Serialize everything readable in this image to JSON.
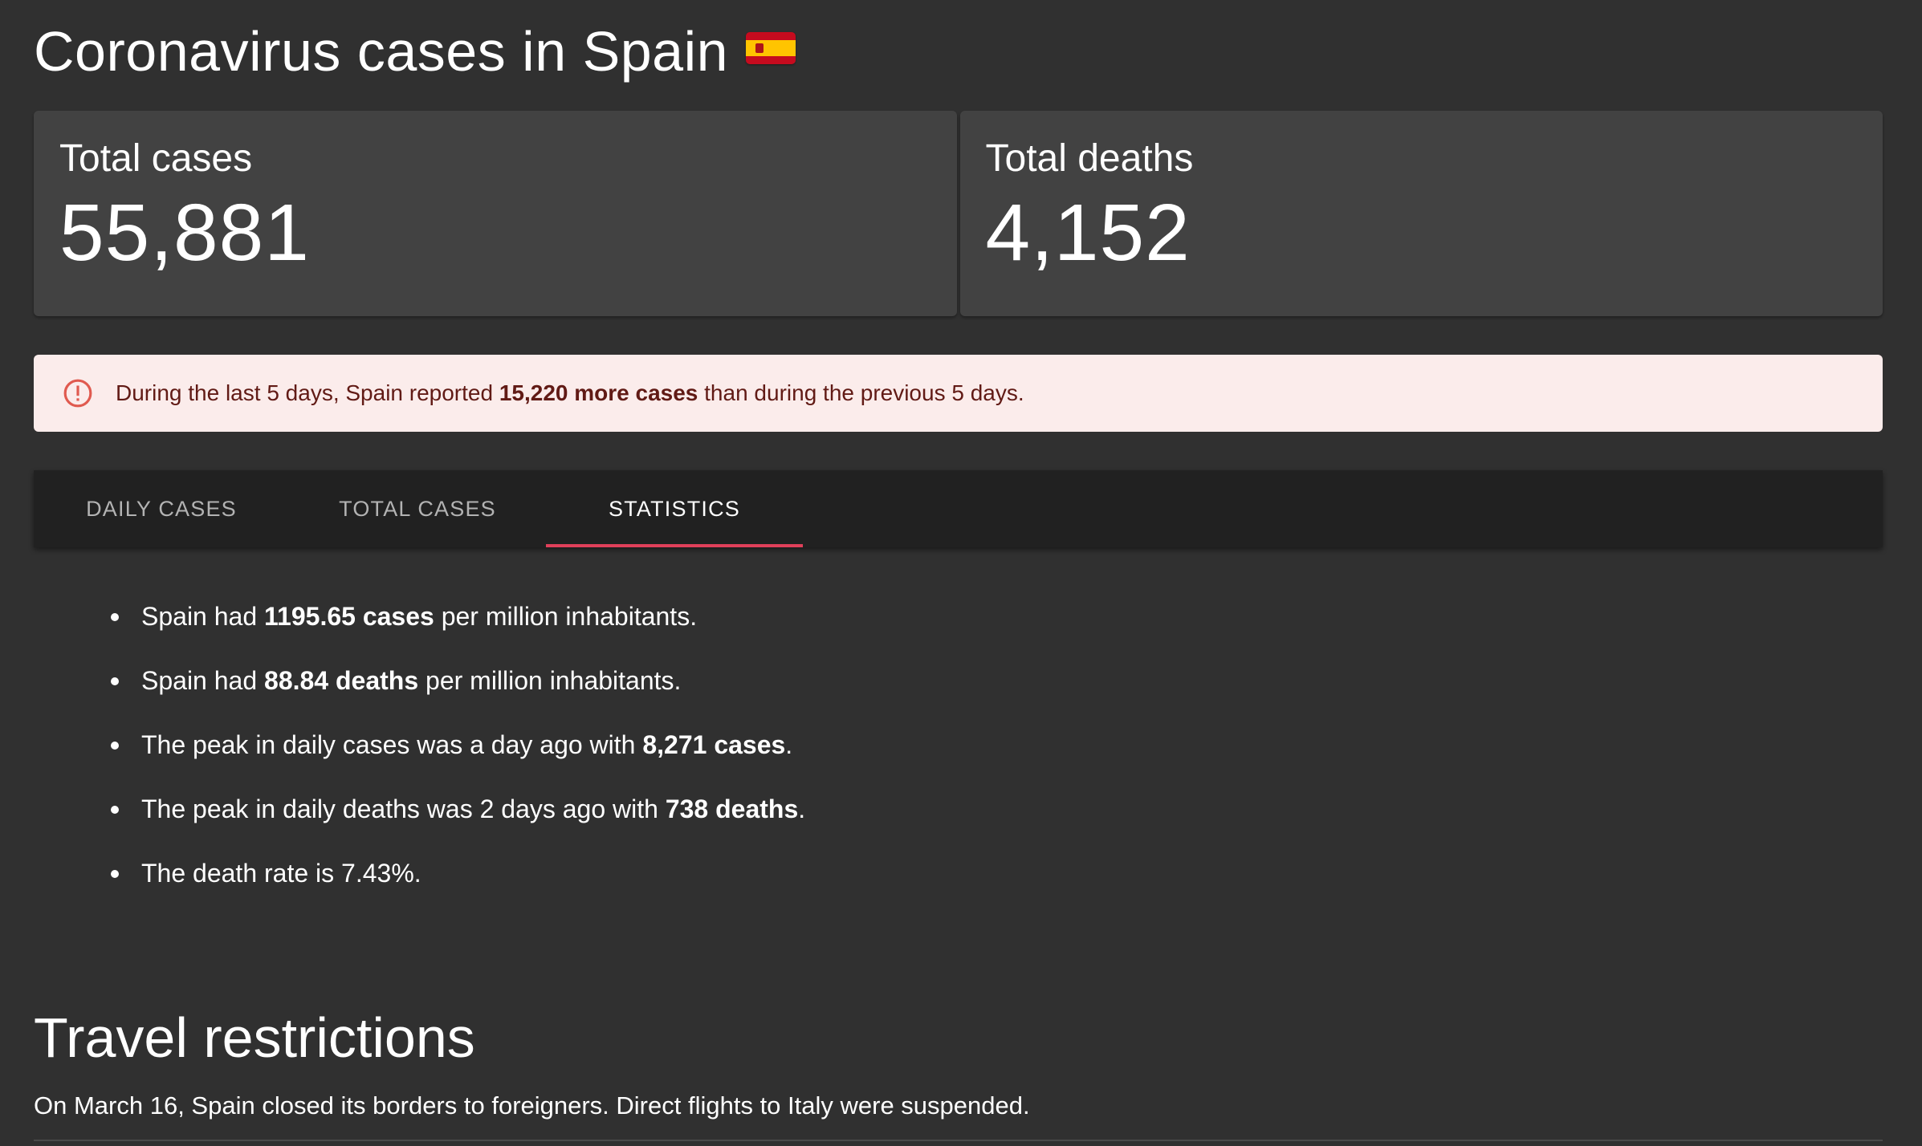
{
  "header": {
    "title": "Coronavirus cases in Spain",
    "flag_icon": "spain-flag-icon"
  },
  "cards": [
    {
      "label": "Total cases",
      "value": "55,881"
    },
    {
      "label": "Total deaths",
      "value": "4,152"
    }
  ],
  "alert": {
    "icon": "alert-circle-icon",
    "prefix": "During the last 5 days, Spain reported ",
    "highlight": "15,220 more cases",
    "suffix": " than during the previous 5 days.",
    "background_color": "#fbeceb",
    "text_color": "#611a15",
    "icon_color": "#e05a4f"
  },
  "tabs": [
    {
      "label": "DAILY CASES",
      "selected": false
    },
    {
      "label": "TOTAL CASES",
      "selected": false
    },
    {
      "label": "STATISTICS",
      "selected": true
    }
  ],
  "tab_indicator_color": "#e0405a",
  "statistics": [
    {
      "before": "Spain had ",
      "bold": "1195.65 cases",
      "after": " per million inhabitants."
    },
    {
      "before": "Spain had ",
      "bold": "88.84 deaths",
      "after": " per million inhabitants."
    },
    {
      "before": "The peak in daily cases was a day ago with ",
      "bold": "8,271 cases",
      "after": "."
    },
    {
      "before": "The peak in daily deaths was 2 days ago with ",
      "bold": "738 deaths",
      "after": "."
    },
    {
      "before": "The death rate is 7.43%.",
      "bold": "",
      "after": ""
    }
  ],
  "travel": {
    "title": "Travel restrictions",
    "text": "On March 16, Spain closed its borders to foreigners. Direct flights to Italy were suspended."
  }
}
